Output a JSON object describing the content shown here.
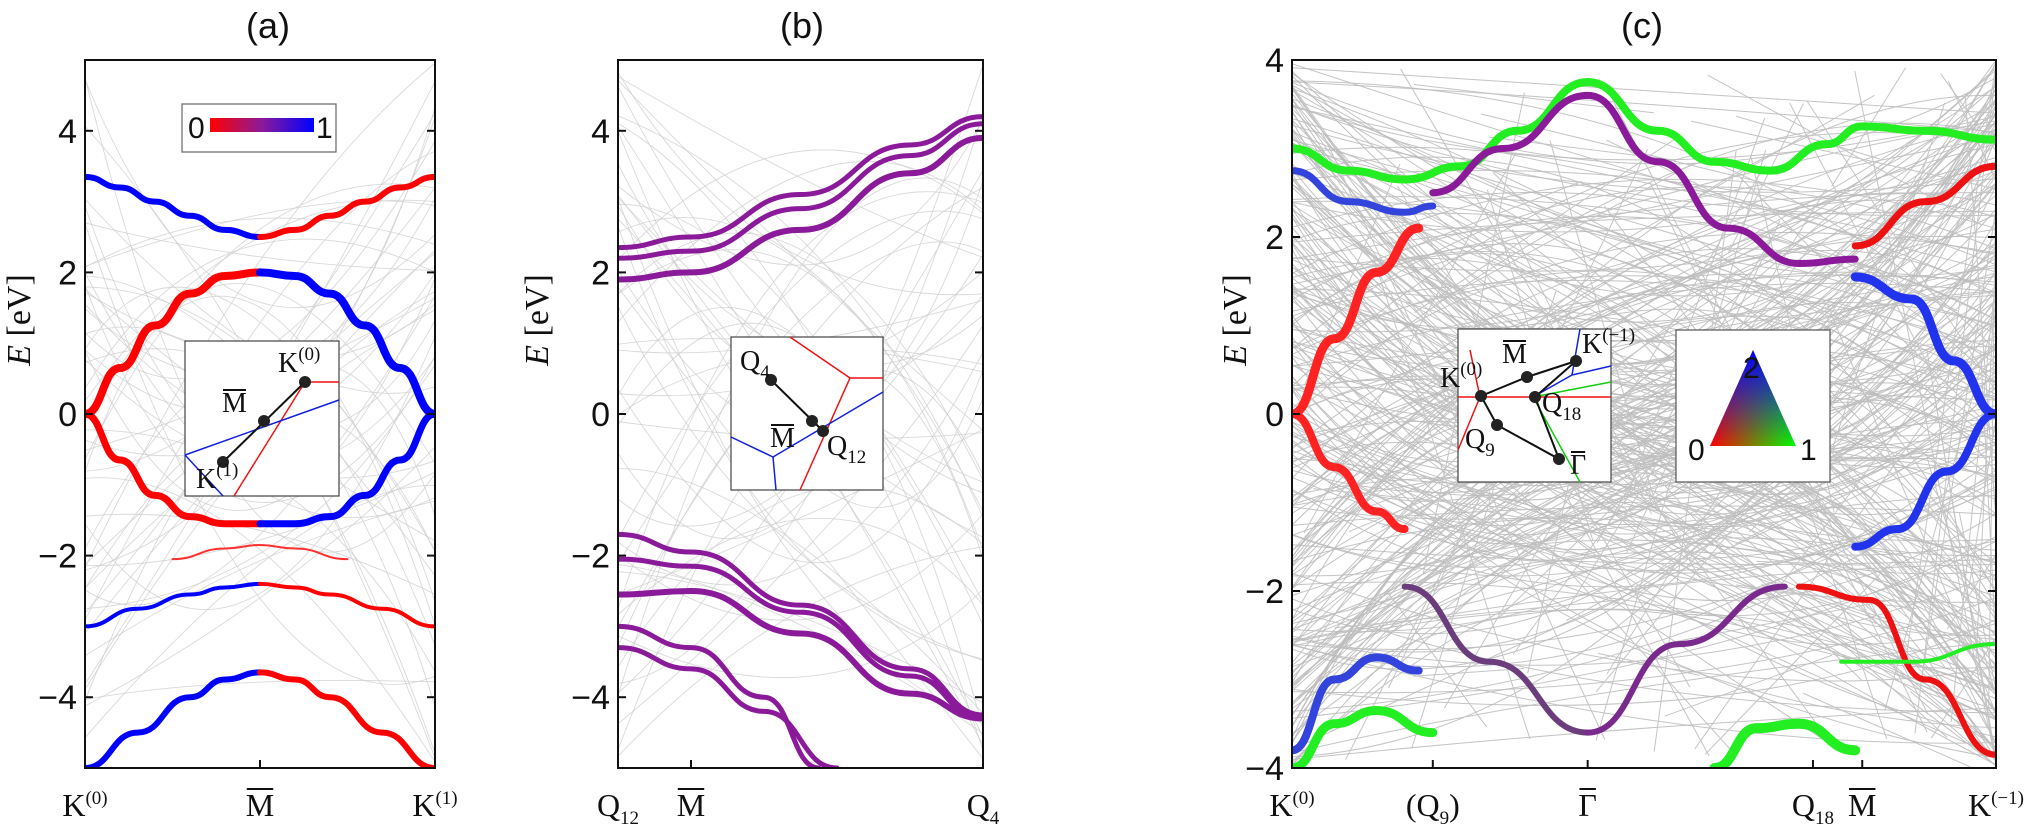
{
  "chart_data": [
    {
      "panel": "a",
      "title": "(a)",
      "type": "line",
      "ylabel": "E [eV]",
      "ylim": [
        -5,
        5
      ],
      "yticks": [
        -4,
        -2,
        0,
        2,
        4
      ],
      "ytick_labels": [
        "−4",
        "−2",
        "0",
        "2",
        "4"
      ],
      "xtick_labels": [
        {
          "base": "K",
          "sup": "(0)",
          "sub": "",
          "bar": false
        },
        {
          "base": "M",
          "sup": "",
          "sub": "",
          "bar": true
        },
        {
          "base": "K",
          "sup": "(1)",
          "sub": "",
          "bar": false
        }
      ],
      "xtick_positions": [
        0,
        0.5,
        1
      ],
      "colorbar": {
        "min_label": "0",
        "max_label": "1",
        "colors": [
          "#ff0000",
          "#0000ff"
        ]
      },
      "inset_labels": [
        {
          "base": "K",
          "sup": "(0)",
          "sub": "",
          "bar": false
        },
        {
          "base": "M",
          "sup": "",
          "sub": "",
          "bar": true
        },
        {
          "base": "K",
          "sup": "(1)",
          "sub": "",
          "bar": false
        }
      ],
      "series": [
        {
          "name": "upper-left",
          "color": "#0000ff",
          "width": 6,
          "x": [
            0,
            0.1,
            0.2,
            0.3,
            0.4,
            0.5
          ],
          "y": [
            3.35,
            3.2,
            3.0,
            2.8,
            2.6,
            2.5
          ]
        },
        {
          "name": "upper-right",
          "color": "#ff0000",
          "width": 6,
          "x": [
            0.5,
            0.6,
            0.7,
            0.8,
            0.9,
            1.0
          ],
          "y": [
            2.5,
            2.6,
            2.8,
            3.0,
            3.2,
            3.35
          ]
        },
        {
          "name": "cone-up-left",
          "color": "#ff0000",
          "width": 8,
          "x": [
            0,
            0.1,
            0.2,
            0.3,
            0.4,
            0.5
          ],
          "y": [
            0,
            0.65,
            1.25,
            1.7,
            1.95,
            2.0
          ]
        },
        {
          "name": "cone-up-right",
          "color": "#0000ff",
          "width": 8,
          "x": [
            0.5,
            0.6,
            0.7,
            0.8,
            0.9,
            1.0
          ],
          "y": [
            2.0,
            1.95,
            1.7,
            1.25,
            0.65,
            0
          ]
        },
        {
          "name": "cone-low-left",
          "color": "#ff0000",
          "width": 7,
          "x": [
            0,
            0.1,
            0.2,
            0.3,
            0.4,
            0.5
          ],
          "y": [
            0,
            -0.65,
            -1.15,
            -1.45,
            -1.55,
            -1.55
          ]
        },
        {
          "name": "cone-low-right",
          "color": "#0000ff",
          "width": 7,
          "x": [
            0.5,
            0.6,
            0.7,
            0.8,
            0.9,
            1.0
          ],
          "y": [
            -1.55,
            -1.55,
            -1.45,
            -1.15,
            -0.65,
            0
          ]
        },
        {
          "name": "band-2-left",
          "color": "#0000ff",
          "width": 4,
          "x": [
            0,
            0.15,
            0.3,
            0.4,
            0.5
          ],
          "y": [
            -3.0,
            -2.75,
            -2.55,
            -2.45,
            -2.4
          ]
        },
        {
          "name": "band-2-right",
          "color": "#ff0000",
          "width": 4,
          "x": [
            0.5,
            0.6,
            0.7,
            0.85,
            1.0
          ],
          "y": [
            -2.4,
            -2.45,
            -2.55,
            -2.75,
            -3.0
          ]
        },
        {
          "name": "band-3",
          "color": "#ff3030",
          "width": 2,
          "x": [
            0.25,
            0.4,
            0.5,
            0.6,
            0.75
          ],
          "y": [
            -2.05,
            -1.9,
            -1.85,
            -1.9,
            -2.05
          ]
        },
        {
          "name": "band-4-left",
          "color": "#0000ff",
          "width": 6,
          "x": [
            0,
            0.15,
            0.3,
            0.4,
            0.5
          ],
          "y": [
            -5.0,
            -4.5,
            -4.0,
            -3.75,
            -3.65
          ]
        },
        {
          "name": "band-4-right",
          "color": "#ff0000",
          "width": 6,
          "x": [
            0.5,
            0.6,
            0.7,
            0.85,
            1.0
          ],
          "y": [
            -3.65,
            -3.75,
            -4.0,
            -4.5,
            -5.0
          ]
        }
      ]
    },
    {
      "panel": "b",
      "title": "(b)",
      "type": "line",
      "ylabel": "E [eV]",
      "ylim": [
        -5,
        5
      ],
      "yticks": [
        -4,
        -2,
        0,
        2,
        4
      ],
      "ytick_labels": [
        "−4",
        "−2",
        "0",
        "2",
        "4"
      ],
      "xtick_labels": [
        {
          "base": "Q",
          "sup": "",
          "sub": "12",
          "bar": false
        },
        {
          "base": "M",
          "sup": "",
          "sub": "",
          "bar": true
        },
        {
          "base": "Q",
          "sup": "",
          "sub": "4",
          "bar": false
        }
      ],
      "xtick_positions": [
        0,
        0.2,
        1
      ],
      "inset_labels": [
        {
          "base": "Q",
          "sup": "",
          "sub": "4",
          "bar": false
        },
        {
          "base": "M",
          "sup": "",
          "sub": "",
          "bar": true
        },
        {
          "base": "Q",
          "sup": "",
          "sub": "12",
          "bar": false
        }
      ],
      "series": [
        {
          "name": "u1",
          "color": "#8a1a9a",
          "width": 5,
          "x": [
            0,
            0.2,
            0.5,
            0.8,
            1.0
          ],
          "y": [
            2.35,
            2.5,
            3.1,
            3.8,
            4.2
          ]
        },
        {
          "name": "u2",
          "color": "#8a1a9a",
          "width": 5,
          "x": [
            0,
            0.2,
            0.5,
            0.8,
            1.0
          ],
          "y": [
            2.2,
            2.3,
            2.9,
            3.65,
            4.1
          ]
        },
        {
          "name": "u3",
          "color": "#8a1a9a",
          "width": 6,
          "x": [
            0,
            0.2,
            0.5,
            0.8,
            1.0
          ],
          "y": [
            1.9,
            2.0,
            2.6,
            3.4,
            3.9
          ]
        },
        {
          "name": "l1",
          "color": "#8a1a9a",
          "width": 5,
          "x": [
            0,
            0.2,
            0.5,
            0.8,
            1.0
          ],
          "y": [
            -1.7,
            -1.95,
            -2.7,
            -3.6,
            -4.25
          ]
        },
        {
          "name": "l2",
          "color": "#8a1a9a",
          "width": 5,
          "x": [
            0,
            0.2,
            0.5,
            0.8,
            1.0
          ],
          "y": [
            -2.05,
            -2.15,
            -2.8,
            -3.7,
            -4.3
          ]
        },
        {
          "name": "l3",
          "color": "#8a1a9a",
          "width": 6,
          "x": [
            0,
            0.2,
            0.5,
            0.8,
            1.0
          ],
          "y": [
            -2.55,
            -2.5,
            -3.1,
            -3.95,
            -4.3
          ]
        },
        {
          "name": "l4",
          "color": "#8a1a9a",
          "width": 5,
          "x": [
            0,
            0.2,
            0.4,
            0.6
          ],
          "y": [
            -3.3,
            -3.6,
            -4.2,
            -5.0
          ]
        },
        {
          "name": "l5",
          "color": "#8a1a9a",
          "width": 5,
          "x": [
            0,
            0.2,
            0.4,
            0.55
          ],
          "y": [
            -3.0,
            -3.3,
            -4.0,
            -5.0
          ]
        }
      ]
    },
    {
      "panel": "c",
      "title": "(c)",
      "type": "line",
      "ylabel": "E [eV]",
      "ylim": [
        -4,
        4
      ],
      "yticks": [
        -4,
        -2,
        0,
        2,
        4
      ],
      "ytick_labels": [
        "−4",
        "−2",
        "0",
        "2",
        "4"
      ],
      "xtick_labels": [
        {
          "base": "K",
          "sup": "(0)",
          "sub": "",
          "bar": false
        },
        {
          "base": "(Q",
          "sup": "",
          "sub": "9",
          "bar": false,
          "close": ")"
        },
        {
          "base": "Γ",
          "sup": "",
          "sub": "",
          "bar": true
        },
        {
          "base": "Q",
          "sup": "",
          "sub": "18",
          "bar": false
        },
        {
          "base": "M",
          "sup": "",
          "sub": "",
          "bar": true
        },
        {
          "base": "K",
          "sup": "(−1)",
          "sub": "",
          "bar": false
        }
      ],
      "xtick_positions": [
        0,
        0.2,
        0.42,
        0.74,
        0.81,
        1
      ],
      "triangle_legend": {
        "labels": [
          "2",
          "0",
          "1"
        ],
        "colors": [
          "#0000ff",
          "#ff0000",
          "#00ff00"
        ]
      },
      "inset_labels": [
        {
          "base": "K",
          "sup": "(0)",
          "sub": "",
          "bar": false
        },
        {
          "base": "M",
          "sup": "",
          "sub": "",
          "bar": true
        },
        {
          "base": "K",
          "sup": "(−1)",
          "sub": "",
          "bar": false
        },
        {
          "base": "Q",
          "sup": "",
          "sub": "18",
          "bar": false
        },
        {
          "base": "Q",
          "sup": "",
          "sub": "9",
          "bar": false
        },
        {
          "base": "Γ",
          "sup": "",
          "sub": "",
          "bar": true
        }
      ],
      "series": [
        {
          "name": "green-top-left",
          "color": "#22ee22",
          "width": 8,
          "x": [
            0,
            0.08,
            0.16,
            0.24,
            0.32,
            0.42
          ],
          "y": [
            3.0,
            2.75,
            2.65,
            2.8,
            3.2,
            3.75
          ]
        },
        {
          "name": "green-top-right",
          "color": "#22ee22",
          "width": 8,
          "x": [
            0.42,
            0.52,
            0.6,
            0.68,
            0.76,
            0.81,
            0.9,
            1.0
          ],
          "y": [
            3.75,
            3.2,
            2.85,
            2.75,
            3.05,
            3.25,
            3.2,
            3.1
          ]
        },
        {
          "name": "blue-top-left",
          "color": "#3344dd",
          "width": 7,
          "x": [
            0,
            0.08,
            0.16,
            0.2
          ],
          "y": [
            2.75,
            2.4,
            2.28,
            2.35
          ]
        },
        {
          "name": "purple-top-left",
          "color": "#8a1a9a",
          "width": 7,
          "x": [
            0.2,
            0.3,
            0.42
          ],
          "y": [
            2.5,
            3.0,
            3.6
          ]
        },
        {
          "name": "purple-top-right",
          "color": "#8a1a9a",
          "width": 7,
          "x": [
            0.42,
            0.52,
            0.62,
            0.72,
            0.8
          ],
          "y": [
            3.6,
            2.85,
            2.1,
            1.7,
            1.75
          ]
        },
        {
          "name": "red-top-right",
          "color": "#ee1111",
          "width": 7,
          "x": [
            0.8,
            0.9,
            1.0
          ],
          "y": [
            1.9,
            2.4,
            2.8
          ]
        },
        {
          "name": "red-cone-up",
          "color": "#ff2222",
          "width": 9,
          "x": [
            0,
            0.06,
            0.12,
            0.18
          ],
          "y": [
            0,
            0.85,
            1.6,
            2.1
          ]
        },
        {
          "name": "red-cone-down",
          "color": "#ff2222",
          "width": 8,
          "x": [
            0,
            0.06,
            0.12,
            0.16
          ],
          "y": [
            0,
            -0.6,
            -1.1,
            -1.3
          ]
        },
        {
          "name": "blue-cone-up",
          "color": "#2233ee",
          "width": 9,
          "x": [
            0.8,
            0.88,
            0.94,
            1.0
          ],
          "y": [
            1.55,
            1.3,
            0.6,
            0
          ]
        },
        {
          "name": "blue-cone-down",
          "color": "#2233ee",
          "width": 8,
          "x": [
            0.8,
            0.86,
            0.93,
            1.0
          ],
          "y": [
            -1.5,
            -1.3,
            -0.65,
            0
          ]
        },
        {
          "name": "purple-V-left",
          "color": "#6b3d7d",
          "width": 6,
          "x": [
            0.16,
            0.28,
            0.42
          ],
          "y": [
            -1.95,
            -2.8,
            -3.6
          ]
        },
        {
          "name": "purple-V-right",
          "color": "#7a2a8c",
          "width": 6,
          "x": [
            0.42,
            0.55,
            0.7
          ],
          "y": [
            -3.6,
            -2.6,
            -1.95
          ]
        },
        {
          "name": "red-lower-right",
          "color": "#ee1111",
          "width": 6,
          "x": [
            0.72,
            0.82,
            0.9,
            1.0
          ],
          "y": [
            -1.95,
            -2.1,
            -3.0,
            -3.85
          ]
        },
        {
          "name": "green-lower-right",
          "color": "#22ee22",
          "width": 4,
          "x": [
            0.78,
            0.88,
            1.0
          ],
          "y": [
            -2.8,
            -2.8,
            -2.6
          ]
        },
        {
          "name": "blue-lower-left",
          "color": "#3344dd",
          "width": 8,
          "x": [
            0,
            0.06,
            0.12,
            0.18
          ],
          "y": [
            -3.8,
            -3.0,
            -2.75,
            -2.9
          ]
        },
        {
          "name": "green-lower-left",
          "color": "#22ee22",
          "width": 9,
          "x": [
            0,
            0.06,
            0.12,
            0.2
          ],
          "y": [
            -4.0,
            -3.5,
            -3.35,
            -3.6
          ]
        },
        {
          "name": "green-bottom-right",
          "color": "#22ee22",
          "width": 10,
          "x": [
            0.6,
            0.66,
            0.72,
            0.8
          ],
          "y": [
            -4.0,
            -3.55,
            -3.5,
            -3.8
          ]
        }
      ]
    }
  ]
}
